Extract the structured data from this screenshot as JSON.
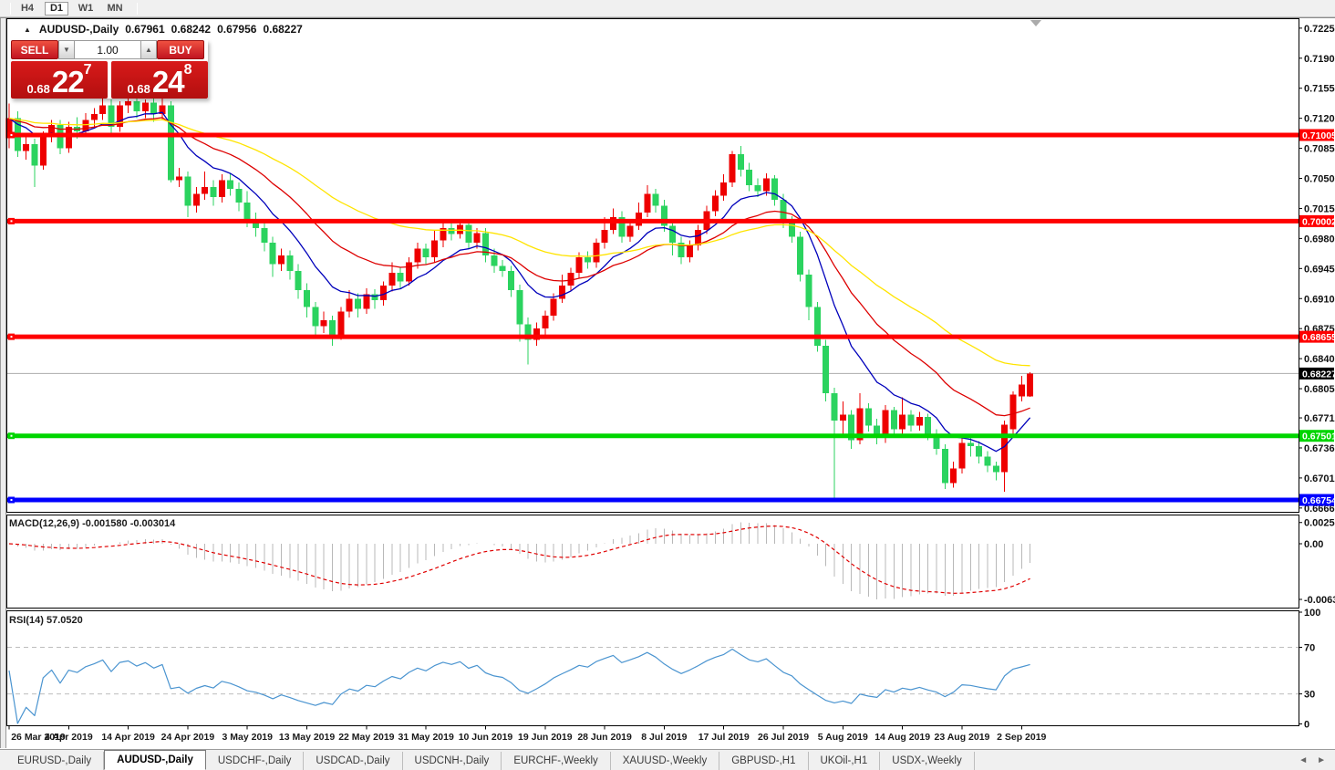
{
  "toolbar": {
    "timeframes": [
      {
        "label": "H4",
        "active": false
      },
      {
        "label": "D1",
        "active": true
      },
      {
        "label": "W1",
        "active": false
      },
      {
        "label": "MN",
        "active": false
      }
    ]
  },
  "chart": {
    "title": "AUDUSD-,Daily",
    "ohlc_line": {
      "open": "0.67961",
      "high": "0.68242",
      "low": "0.67956",
      "close": "0.68227"
    },
    "trade_panel": {
      "sell_label": "SELL",
      "buy_label": "BUY",
      "volume": "1.00",
      "bid": {
        "prefix": "0.68",
        "big": "22",
        "sup": "7"
      },
      "ask": {
        "prefix": "0.68",
        "big": "24",
        "sup": "8"
      }
    }
  },
  "chart_data": {
    "type": "candlestick",
    "symbol": "AUDUSD-",
    "timeframe": "Daily",
    "colors": {
      "bull_candle": "#ee0000",
      "bear_candle": "#2bd35f",
      "ma_fast": "#0000bb",
      "ma_mid": "#dd0000",
      "ma_slow": "#ffe400",
      "last_price_line": "#ababab"
    },
    "candles": [
      [
        0.7097,
        0.7137,
        0.7085,
        0.712
      ],
      [
        0.712,
        0.7128,
        0.7075,
        0.7082
      ],
      [
        0.7082,
        0.7098,
        0.7072,
        0.709
      ],
      [
        0.709,
        0.7096,
        0.704,
        0.7065
      ],
      [
        0.7065,
        0.7105,
        0.706,
        0.71
      ],
      [
        0.71,
        0.7118,
        0.7092,
        0.7112
      ],
      [
        0.7112,
        0.7118,
        0.7078,
        0.7085
      ],
      [
        0.7085,
        0.7116,
        0.708,
        0.711
      ],
      [
        0.711,
        0.7121,
        0.7096,
        0.7105
      ],
      [
        0.7105,
        0.7126,
        0.7098,
        0.7118
      ],
      [
        0.7118,
        0.7132,
        0.7108,
        0.7125
      ],
      [
        0.7125,
        0.7145,
        0.7118,
        0.7135
      ],
      [
        0.7135,
        0.7142,
        0.71,
        0.711
      ],
      [
        0.711,
        0.714,
        0.7104,
        0.7135
      ],
      [
        0.7135,
        0.7146,
        0.7126,
        0.714
      ],
      [
        0.714,
        0.7145,
        0.712,
        0.7128
      ],
      [
        0.7128,
        0.7142,
        0.712,
        0.7138
      ],
      [
        0.7138,
        0.7144,
        0.7116,
        0.7125
      ],
      [
        0.7125,
        0.7145,
        0.7118,
        0.7135
      ],
      [
        0.7135,
        0.714,
        0.7045,
        0.7048
      ],
      [
        0.7048,
        0.7062,
        0.704,
        0.7052
      ],
      [
        0.7052,
        0.7058,
        0.7005,
        0.7018
      ],
      [
        0.7018,
        0.704,
        0.701,
        0.7032
      ],
      [
        0.7032,
        0.7058,
        0.7025,
        0.704
      ],
      [
        0.704,
        0.7048,
        0.7018,
        0.7028
      ],
      [
        0.7028,
        0.7055,
        0.7022,
        0.7048
      ],
      [
        0.7048,
        0.7056,
        0.703,
        0.7038
      ],
      [
        0.7038,
        0.7045,
        0.7012,
        0.7022
      ],
      [
        0.7022,
        0.7035,
        0.6993,
        0.7
      ],
      [
        0.7,
        0.701,
        0.6982,
        0.6992
      ],
      [
        0.6992,
        0.6998,
        0.6965,
        0.6975
      ],
      [
        0.6975,
        0.6982,
        0.6935,
        0.695
      ],
      [
        0.695,
        0.6968,
        0.6942,
        0.696
      ],
      [
        0.696,
        0.6966,
        0.6932,
        0.6942
      ],
      [
        0.6942,
        0.695,
        0.691,
        0.692
      ],
      [
        0.692,
        0.6928,
        0.6888,
        0.69
      ],
      [
        0.69,
        0.6906,
        0.6865,
        0.6878
      ],
      [
        0.6878,
        0.6895,
        0.687,
        0.6885
      ],
      [
        0.6885,
        0.689,
        0.6855,
        0.6868
      ],
      [
        0.6868,
        0.69,
        0.6862,
        0.6895
      ],
      [
        0.6895,
        0.692,
        0.6888,
        0.691
      ],
      [
        0.691,
        0.6916,
        0.6888,
        0.6898
      ],
      [
        0.6898,
        0.6922,
        0.6892,
        0.6915
      ],
      [
        0.6915,
        0.6921,
        0.6898,
        0.6908
      ],
      [
        0.6908,
        0.693,
        0.6902,
        0.6925
      ],
      [
        0.6925,
        0.6952,
        0.6918,
        0.694
      ],
      [
        0.694,
        0.6946,
        0.6922,
        0.693
      ],
      [
        0.693,
        0.6958,
        0.6925,
        0.6952
      ],
      [
        0.6952,
        0.6975,
        0.6945,
        0.6968
      ],
      [
        0.6968,
        0.6974,
        0.695,
        0.6958
      ],
      [
        0.6958,
        0.699,
        0.6952,
        0.6978
      ],
      [
        0.6978,
        0.6998,
        0.697,
        0.6992
      ],
      [
        0.6992,
        0.7,
        0.6978,
        0.6985
      ],
      [
        0.6985,
        0.7002,
        0.698,
        0.6996
      ],
      [
        0.6996,
        0.7,
        0.6968,
        0.6975
      ],
      [
        0.6975,
        0.6992,
        0.6968,
        0.6986
      ],
      [
        0.6986,
        0.6992,
        0.6952,
        0.696
      ],
      [
        0.696,
        0.6968,
        0.694,
        0.6948
      ],
      [
        0.6948,
        0.6955,
        0.6935,
        0.6942
      ],
      [
        0.6942,
        0.6948,
        0.6912,
        0.692
      ],
      [
        0.692,
        0.6926,
        0.686,
        0.688
      ],
      [
        0.688,
        0.6888,
        0.6833,
        0.6862
      ],
      [
        0.6862,
        0.6882,
        0.6855,
        0.6875
      ],
      [
        0.6875,
        0.6896,
        0.6868,
        0.689
      ],
      [
        0.689,
        0.6916,
        0.6884,
        0.691
      ],
      [
        0.691,
        0.6938,
        0.6905,
        0.6925
      ],
      [
        0.6925,
        0.6946,
        0.6918,
        0.694
      ],
      [
        0.694,
        0.6964,
        0.6934,
        0.6958
      ],
      [
        0.6958,
        0.6965,
        0.6945,
        0.6952
      ],
      [
        0.6952,
        0.698,
        0.6946,
        0.6975
      ],
      [
        0.6975,
        0.7005,
        0.6968,
        0.699
      ],
      [
        0.699,
        0.7015,
        0.6985,
        0.7005
      ],
      [
        0.7005,
        0.7012,
        0.6975,
        0.6982
      ],
      [
        0.6982,
        0.7,
        0.6976,
        0.6995
      ],
      [
        0.6995,
        0.7022,
        0.699,
        0.701
      ],
      [
        0.701,
        0.7042,
        0.7005,
        0.7032
      ],
      [
        0.7032,
        0.7038,
        0.701,
        0.7018
      ],
      [
        0.7018,
        0.7025,
        0.6988,
        0.6995
      ],
      [
        0.6995,
        0.7002,
        0.696,
        0.6975
      ],
      [
        0.6975,
        0.6982,
        0.695,
        0.6958
      ],
      [
        0.6958,
        0.6978,
        0.6952,
        0.6972
      ],
      [
        0.6972,
        0.6996,
        0.6966,
        0.699
      ],
      [
        0.699,
        0.7018,
        0.6985,
        0.7012
      ],
      [
        0.7012,
        0.7036,
        0.7006,
        0.703
      ],
      [
        0.703,
        0.7055,
        0.7024,
        0.7045
      ],
      [
        0.7045,
        0.7082,
        0.704,
        0.7078
      ],
      [
        0.7078,
        0.7088,
        0.7052,
        0.706
      ],
      [
        0.706,
        0.7068,
        0.7035,
        0.7042
      ],
      [
        0.7042,
        0.705,
        0.7028,
        0.7035
      ],
      [
        0.7035,
        0.7056,
        0.703,
        0.705
      ],
      [
        0.705,
        0.7054,
        0.7018,
        0.7025
      ],
      [
        0.7025,
        0.7032,
        0.6992,
        0.6998
      ],
      [
        0.6998,
        0.7006,
        0.6975,
        0.6982
      ],
      [
        0.6982,
        0.6988,
        0.693,
        0.6938
      ],
      [
        0.6938,
        0.6944,
        0.6885,
        0.69
      ],
      [
        0.69,
        0.6906,
        0.6848,
        0.6855
      ],
      [
        0.6855,
        0.6862,
        0.679,
        0.68
      ],
      [
        0.68,
        0.6806,
        0.6677,
        0.6768
      ],
      [
        0.6768,
        0.679,
        0.6752,
        0.6775
      ],
      [
        0.6775,
        0.678,
        0.6735,
        0.6745
      ],
      [
        0.6745,
        0.68,
        0.674,
        0.6782
      ],
      [
        0.6782,
        0.6788,
        0.6755,
        0.6762
      ],
      [
        0.6762,
        0.677,
        0.674,
        0.6748
      ],
      [
        0.6748,
        0.6786,
        0.6742,
        0.678
      ],
      [
        0.678,
        0.6784,
        0.675,
        0.6758
      ],
      [
        0.6758,
        0.6795,
        0.6752,
        0.6775
      ],
      [
        0.6775,
        0.678,
        0.6755,
        0.6762
      ],
      [
        0.6762,
        0.6778,
        0.6756,
        0.6772
      ],
      [
        0.6772,
        0.6776,
        0.6745,
        0.6752
      ],
      [
        0.6752,
        0.6758,
        0.6728,
        0.6735
      ],
      [
        0.6735,
        0.674,
        0.6688,
        0.6695
      ],
      [
        0.6695,
        0.672,
        0.669,
        0.6712
      ],
      [
        0.6712,
        0.6748,
        0.6706,
        0.6742
      ],
      [
        0.6742,
        0.6748,
        0.6726,
        0.6738
      ],
      [
        0.6738,
        0.6744,
        0.6718,
        0.6726
      ],
      [
        0.6726,
        0.6732,
        0.6708,
        0.6715
      ],
      [
        0.6715,
        0.672,
        0.6698,
        0.6708
      ],
      [
        0.6708,
        0.6768,
        0.6685,
        0.6763
      ],
      [
        0.6758,
        0.6802,
        0.6752,
        0.6798
      ],
      [
        0.6796,
        0.682,
        0.679,
        0.681
      ],
      [
        0.67961,
        0.68242,
        0.67956,
        0.68227
      ]
    ],
    "x_axis": {
      "labels": [
        "26 Mar 2019",
        "4 Apr 2019",
        "14 Apr 2019",
        "24 Apr 2019",
        "3 May 2019",
        "13 May 2019",
        "22 May 2019",
        "31 May 2019",
        "10 Jun 2019",
        "19 Jun 2019",
        "28 Jun 2019",
        "8 Jul 2019",
        "17 Jul 2019",
        "26 Jul 2019",
        "5 Aug 2019",
        "14 Aug 2019",
        "23 Aug 2019",
        "2 Sep 2019"
      ],
      "indices": [
        0,
        7,
        14,
        21,
        28,
        35,
        42,
        49,
        56,
        63,
        70,
        77,
        84,
        91,
        98,
        105,
        112,
        119
      ]
    },
    "y_axis": {
      "ticks": [
        "0.72250",
        "0.71900",
        "0.71550",
        "0.71200",
        "0.70850",
        "0.70500",
        "0.70150",
        "0.69800",
        "0.69450",
        "0.69100",
        "0.68750",
        "0.68400",
        "0.68050",
        "0.67710",
        "0.67360",
        "0.67010",
        "0.66660"
      ],
      "range": [
        0.6666,
        0.7225
      ]
    },
    "horizontal_lines": [
      {
        "price": 0.71005,
        "label": "0.71005",
        "color": "#ff0000"
      },
      {
        "price": 0.70002,
        "label": "0.70002",
        "color": "#ff0000"
      },
      {
        "price": 0.68655,
        "label": "0.68655",
        "color": "#ff0000"
      },
      {
        "price": 0.67501,
        "label": "0.67501",
        "color": "#00d500"
      },
      {
        "price": 0.66754,
        "label": "0.66754",
        "color": "#0000ff"
      }
    ],
    "last_price": {
      "value": 0.68227,
      "label": "0.68227",
      "badge_color": "#000000"
    },
    "moving_averages": [
      {
        "name": "fast",
        "period": 10,
        "color": "#0000bb"
      },
      {
        "name": "mid",
        "period": 22,
        "color": "#dd0000"
      },
      {
        "name": "slow",
        "period": 45,
        "color": "#ffe400"
      }
    ],
    "indicators": {
      "macd": {
        "label": "MACD(12,26,9)",
        "value_text": "-0.001580",
        "signal_text": "-0.003014",
        "y_ticks": [
          "0.002574",
          "0.00",
          "-0.006326"
        ],
        "hist_color": "#b8b8b8",
        "signal_color": "#e00000"
      },
      "rsi": {
        "label": "RSI(14)",
        "value_text": "57.0520",
        "levels": [
          70,
          30
        ],
        "y_ticks": [
          "100",
          "70",
          "30",
          "0"
        ],
        "color": "#4a94d0"
      }
    }
  },
  "tabs": {
    "items": [
      "EURUSD-,Daily",
      "AUDUSD-,Daily",
      "USDCHF-,Daily",
      "USDCAD-,Daily",
      "USDCNH-,Daily",
      "EURCHF-,Weekly",
      "XAUUSD-,Weekly",
      "GBPUSD-,H1",
      "UKOil-,H1",
      "USDX-,Weekly"
    ],
    "active_index": 1,
    "scroll_left": "◄",
    "scroll_right": "►"
  }
}
